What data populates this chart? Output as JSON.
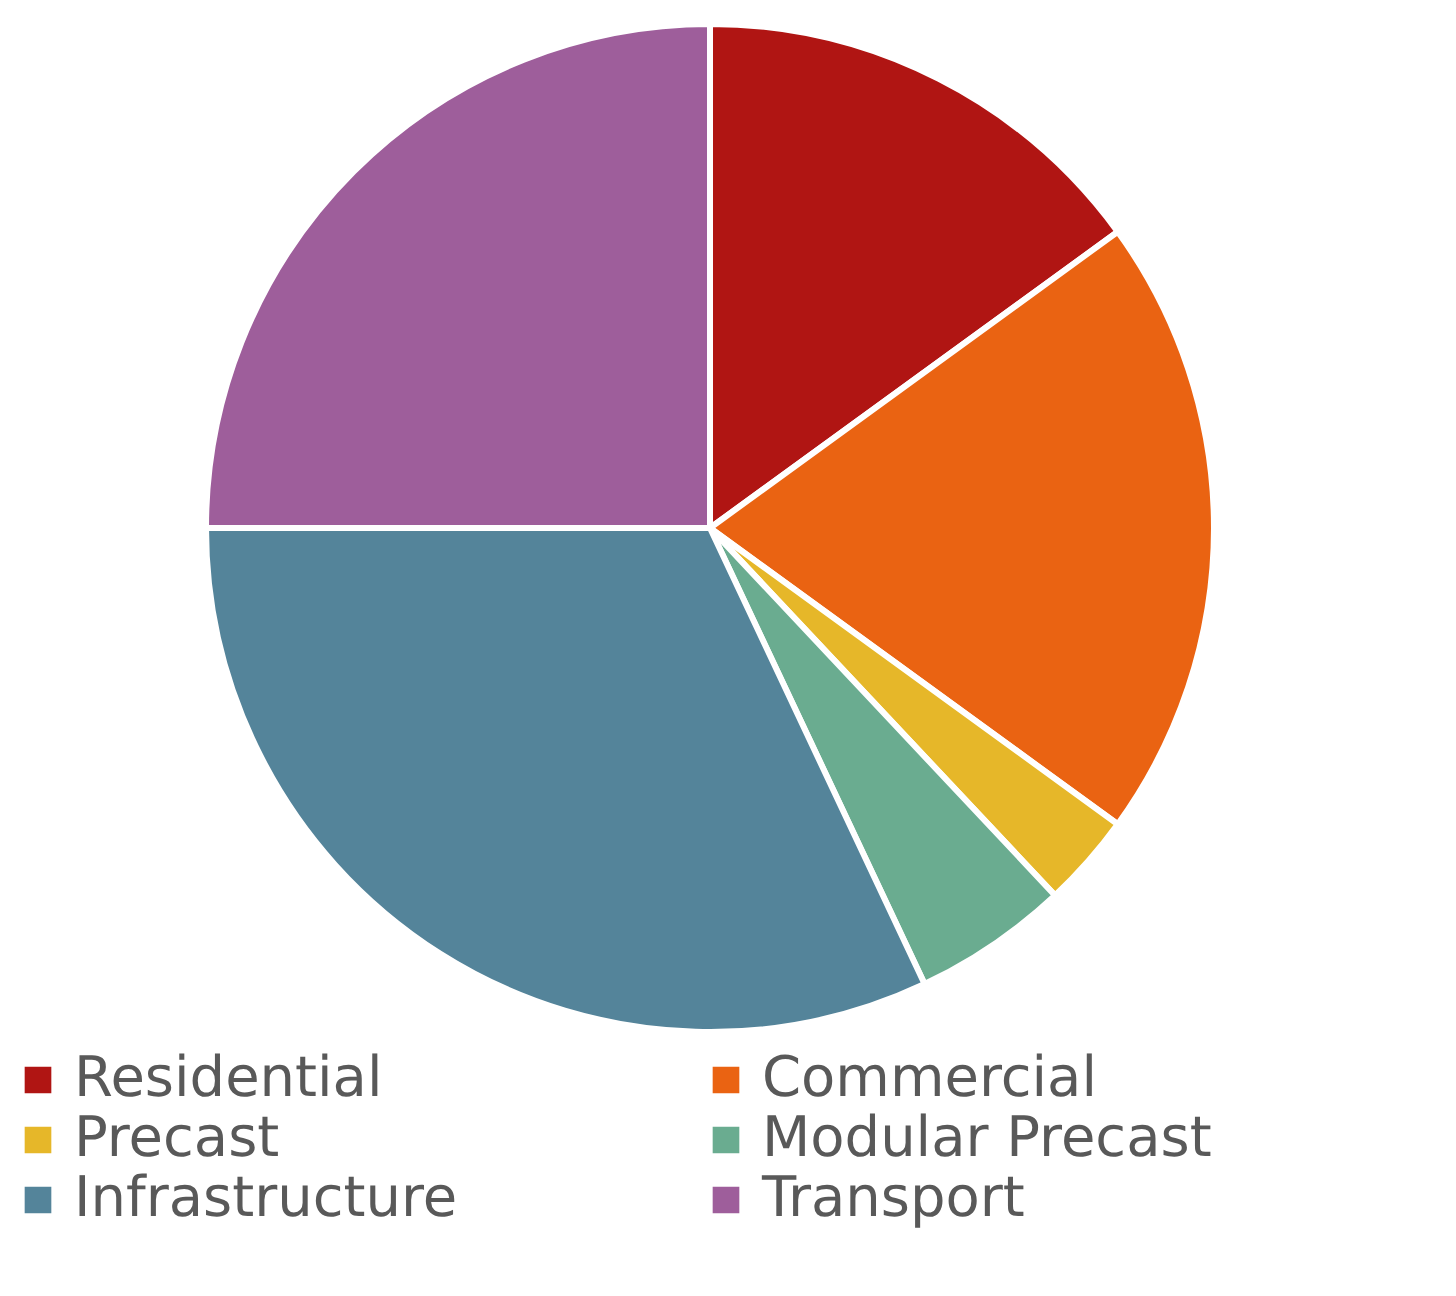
{
  "chart_data": {
    "type": "pie",
    "categories": [
      "Residential",
      "Commercial",
      "Precast",
      "Modular Precast",
      "Infrastructure",
      "Transport"
    ],
    "values": [
      15,
      20,
      3,
      5,
      32,
      25
    ],
    "colors": [
      "#b01513",
      "#ea6312",
      "#e6b729",
      "#6aac90",
      "#54849a",
      "#9e5e9b"
    ],
    "legend": "bottom"
  }
}
